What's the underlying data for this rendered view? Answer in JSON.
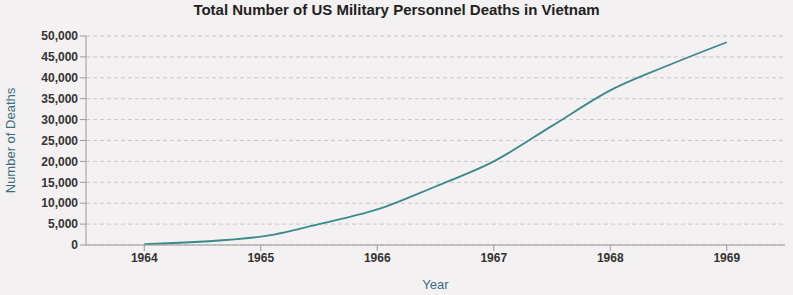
{
  "chart_data": {
    "type": "line",
    "title": "Total Number of US Military Personnel Deaths in Vietnam",
    "x_label": "Year",
    "y_label": "Number of Deaths",
    "x": [
      1964,
      1965,
      1965.5,
      1966,
      1966.5,
      1967,
      1967.5,
      1968,
      1968.5,
      1969
    ],
    "values": [
      200,
      2000,
      5000,
      8500,
      14000,
      20000,
      28500,
      37000,
      43000,
      48500
    ],
    "color": "#3b8a8c",
    "xlim": [
      1963.5,
      1969.5
    ],
    "xticks": [
      1964,
      1965,
      1966,
      1967,
      1968,
      1969
    ],
    "ylim": [
      0,
      50000
    ],
    "yticks": [
      0,
      {
        "value": 5000,
        "label": "5,000"
      },
      {
        "value": 10000,
        "label": "10,000"
      },
      {
        "value": 15000,
        "label": "15,000"
      },
      {
        "value": 20000,
        "label": "20,000"
      },
      {
        "value": 25000,
        "label": "25,000"
      },
      {
        "value": 30000,
        "label": "30,000"
      },
      {
        "value": 35000,
        "label": "35,000"
      },
      {
        "value": 40000,
        "label": "40,000"
      },
      {
        "value": 45000,
        "label": "45,000"
      },
      {
        "value": 50000,
        "label": "50,000"
      }
    ],
    "grid": true,
    "line_style": "solid",
    "marker": "none"
  }
}
